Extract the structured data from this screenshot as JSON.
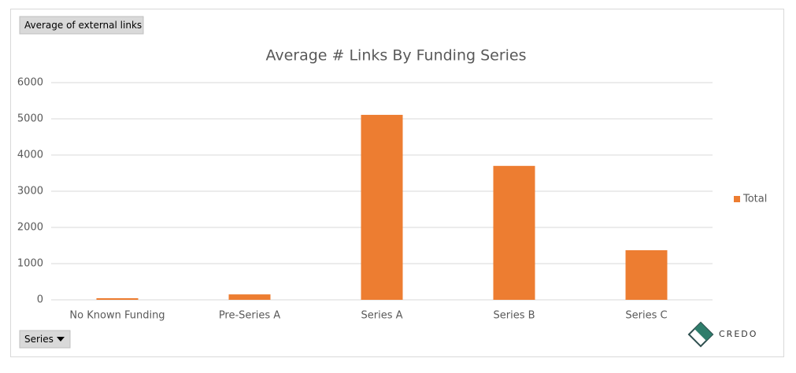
{
  "pivot_field_button": "Average of external links",
  "filter_button": "Series",
  "logo": "CREDO",
  "chart_data": {
    "type": "bar",
    "title": "Average # Links By Funding Series",
    "categories": [
      "No Known Funding",
      "Pre-Series A",
      "Series A",
      "Series B",
      "Series C"
    ],
    "series": [
      {
        "name": "Total",
        "color": "#ed7d31",
        "values": [
          45,
          150,
          5110,
          3700,
          1370
        ]
      }
    ],
    "ylim": [
      0,
      6000
    ],
    "yticks": [
      0,
      1000,
      2000,
      3000,
      4000,
      5000,
      6000
    ],
    "grid": true,
    "legend": "right"
  }
}
